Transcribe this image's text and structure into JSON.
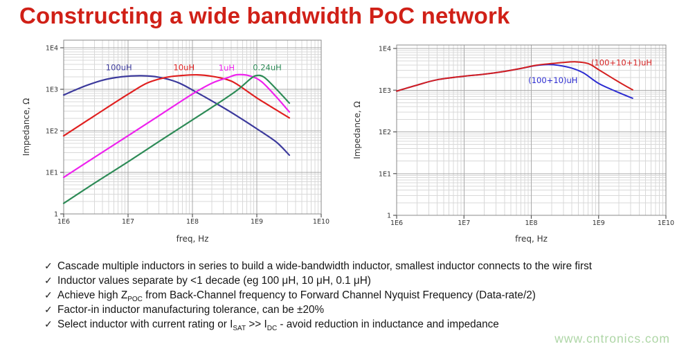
{
  "header": {
    "title": "Constructing a wide bandwidth PoC network",
    "accent_color": "#d02017"
  },
  "chart_data": [
    {
      "type": "line",
      "title": "",
      "xlabel": "freq, Hz",
      "ylabel": "Impedance, Ω",
      "x_scale": "log",
      "y_scale": "log",
      "xlog_range": [
        6,
        10
      ],
      "ylog_range": [
        0,
        4
      ],
      "x_tick_labels": [
        "1E6",
        "1E7",
        "1E8",
        "1E9",
        "1E10"
      ],
      "y_tick_labels": [
        "1",
        "1E1",
        "1E2",
        "1E3",
        "1E4"
      ],
      "grid": true,
      "legend_position": "inline-labels",
      "series": [
        {
          "name": "100uH",
          "color": "#3c3a9c",
          "label_f": 7200000.0,
          "label_z": 2850,
          "points": [
            [
              1000000.0,
              730
            ],
            [
              2000000.0,
              1150
            ],
            [
              4000000.0,
              1650
            ],
            [
              8000000.0,
              2000
            ],
            [
              16000000.0,
              2120
            ],
            [
              30000000.0,
              1950
            ],
            [
              60000000.0,
              1450
            ],
            [
              120000000.0,
              820
            ],
            [
              250000000.0,
              430
            ],
            [
              500000000.0,
              225
            ],
            [
              1000000000.0,
              112
            ],
            [
              2000000000.0,
              54
            ],
            [
              3200000000.0,
              26
            ]
          ]
        },
        {
          "name": "10uH",
          "color": "#e02020",
          "label_f": 74000000.0,
          "label_z": 2850,
          "points": [
            [
              1000000.0,
              76
            ],
            [
              3000000.0,
              230
            ],
            [
              10000000.0,
              760
            ],
            [
              20000000.0,
              1420
            ],
            [
              40000000.0,
              1950
            ],
            [
              70000000.0,
              2150
            ],
            [
              120000000.0,
              2230
            ],
            [
              200000000.0,
              2060
            ],
            [
              350000000.0,
              1700
            ],
            [
              500000000.0,
              1300
            ],
            [
              1000000000.0,
              620
            ],
            [
              2000000000.0,
              320
            ],
            [
              3200000000.0,
              205
            ]
          ]
        },
        {
          "name": "1uH",
          "color": "#ee22ee",
          "label_f": 340000000.0,
          "label_z": 2800,
          "points": [
            [
              1000000.0,
              7.6
            ],
            [
              3000000.0,
              23
            ],
            [
              10000000.0,
              76
            ],
            [
              30000000.0,
              230
            ],
            [
              100000000.0,
              770
            ],
            [
              200000000.0,
              1400
            ],
            [
              350000000.0,
              1900
            ],
            [
              500000000.0,
              2250
            ],
            [
              800000000.0,
              2080
            ],
            [
              1200000000.0,
              1500
            ],
            [
              2000000000.0,
              660
            ],
            [
              3200000000.0,
              285
            ]
          ]
        },
        {
          "name": "0.24uH",
          "color": "#2e8b57",
          "label_f": 1450000000.0,
          "label_z": 2850,
          "points": [
            [
              1000000.0,
              1.8
            ],
            [
              3000000.0,
              5.5
            ],
            [
              10000000.0,
              18
            ],
            [
              30000000.0,
              55
            ],
            [
              100000000.0,
              183
            ],
            [
              250000000.0,
              460
            ],
            [
              500000000.0,
              960
            ],
            [
              800000000.0,
              1800
            ],
            [
              1000000000.0,
              2150
            ],
            [
              1300000000.0,
              1950
            ],
            [
              2000000000.0,
              1020
            ],
            [
              3200000000.0,
              465
            ]
          ]
        }
      ]
    },
    {
      "type": "line",
      "title": "",
      "xlabel": "freq, Hz",
      "ylabel": "Impedance, Ω",
      "x_scale": "log",
      "y_scale": "log",
      "xlog_range": [
        6,
        10
      ],
      "ylog_range": [
        0,
        4
      ],
      "x_tick_labels": [
        "1E6",
        "1E7",
        "1E8",
        "1E9",
        "1E10"
      ],
      "y_tick_labels": [
        "1",
        "1E1",
        "1E2",
        "1E3",
        "1E4"
      ],
      "grid": true,
      "legend_position": "inline-labels",
      "series": [
        {
          "name": "(100+10)uH",
          "color": "#2b2bd0",
          "label_f": 210000000.0,
          "label_z": 1480,
          "points": [
            [
              1000000.0,
              950
            ],
            [
              2000000.0,
              1320
            ],
            [
              4000000.0,
              1780
            ],
            [
              10000000.0,
              2160
            ],
            [
              20000000.0,
              2420
            ],
            [
              40000000.0,
              2820
            ],
            [
              70000000.0,
              3320
            ],
            [
              120000000.0,
              3920
            ],
            [
              180000000.0,
              4120
            ],
            [
              250000000.0,
              3960
            ],
            [
              400000000.0,
              3380
            ],
            [
              600000000.0,
              2580
            ],
            [
              1000000000.0,
              1450
            ],
            [
              1800000000.0,
              940
            ],
            [
              3200000000.0,
              640
            ]
          ]
        },
        {
          "name": "(100+10+1)uH",
          "color": "#d42020",
          "label_f": 2200000000.0,
          "label_z": 3950,
          "points": [
            [
              1000000.0,
              950
            ],
            [
              2000000.0,
              1320
            ],
            [
              4000000.0,
              1780
            ],
            [
              10000000.0,
              2160
            ],
            [
              20000000.0,
              2420
            ],
            [
              40000000.0,
              2820
            ],
            [
              70000000.0,
              3320
            ],
            [
              120000000.0,
              3980
            ],
            [
              200000000.0,
              4350
            ],
            [
              300000000.0,
              4620
            ],
            [
              450000000.0,
              4780
            ],
            [
              700000000.0,
              4350
            ],
            [
              1000000000.0,
              3100
            ],
            [
              1600000000.0,
              1950
            ],
            [
              2200000000.0,
              1430
            ],
            [
              3200000000.0,
              1020
            ]
          ]
        }
      ]
    }
  ],
  "notes": {
    "check_glyph": "✓",
    "items": [
      [
        {
          "t": "Cascade multiple inductors in series to build a wide-bandwidth inductor, smallest inductor connects to the wire first"
        }
      ],
      [
        {
          "t": "Inductor values separate by <1 decade (eg 100 μH, 10 μH, 0.1 μH)"
        }
      ],
      [
        {
          "t": "Achieve high Z"
        },
        {
          "s": "POC"
        },
        {
          "t": " from Back-Channel frequency to Forward Channel Nyquist Frequency (Data-rate/2)"
        }
      ],
      [
        {
          "t": "Factor-in inductor manufacturing tolerance, can be ±20%"
        }
      ],
      [
        {
          "t": "Select inductor with current rating or I"
        },
        {
          "s": "SAT"
        },
        {
          "t": " >> I"
        },
        {
          "s": "DC"
        },
        {
          "t": " - avoid reduction in inductance and impedance"
        }
      ]
    ]
  },
  "watermark": {
    "text": "www.cntronics.com",
    "color": "#aed6a6"
  }
}
